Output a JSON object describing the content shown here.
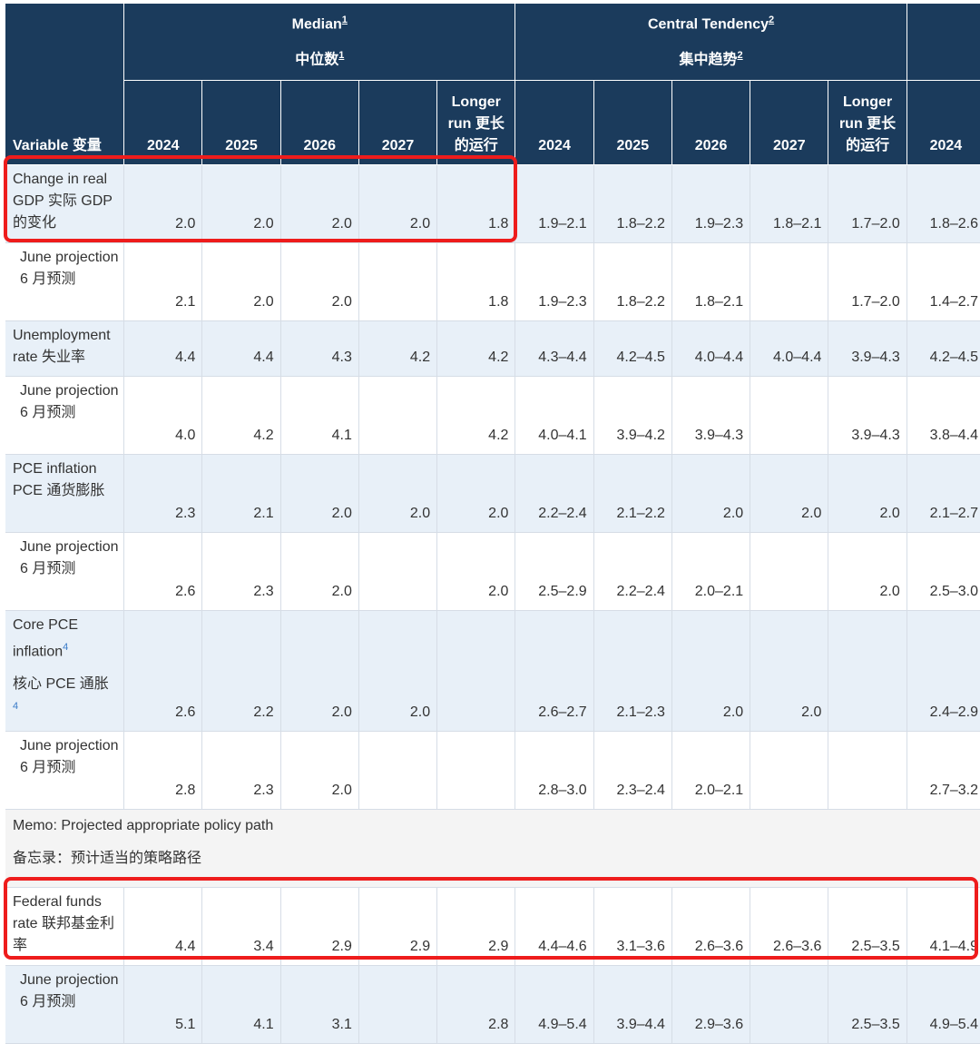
{
  "header": {
    "variable": "Variable 变量",
    "median": {
      "en": "Median",
      "zh": "中位数",
      "fn": "1"
    },
    "central": {
      "en": "Central Tendency",
      "zh": "集中趋势",
      "fn": "2"
    },
    "years": [
      "2024",
      "2025",
      "2026",
      "2027"
    ],
    "longer_run": "Longer run 更长的运行",
    "extra_year": "2024"
  },
  "rows": [
    {
      "label": "Change in real GDP 实际 GDP 的变化",
      "median": [
        "2.0",
        "2.0",
        "2.0",
        "2.0",
        "1.8"
      ],
      "central": [
        "1.9–2.1",
        "1.8–2.2",
        "1.9–2.3",
        "1.8–2.1",
        "1.7–2.0"
      ],
      "extra": "1.8–2.6"
    },
    {
      "label": "June projection 6 月预测",
      "median": [
        "2.1",
        "2.0",
        "2.0",
        "",
        "1.8"
      ],
      "central": [
        "1.9–2.3",
        "1.8–2.2",
        "1.8–2.1",
        "",
        "1.7–2.0"
      ],
      "extra": "1.4–2.7"
    },
    {
      "label": "Unemployment rate 失业率",
      "median": [
        "4.4",
        "4.4",
        "4.3",
        "4.2",
        "4.2"
      ],
      "central": [
        "4.3–4.4",
        "4.2–4.5",
        "4.0–4.4",
        "4.0–4.4",
        "3.9–4.3"
      ],
      "extra": "4.2–4.5"
    },
    {
      "label": "June projection 6 月预测",
      "median": [
        "4.0",
        "4.2",
        "4.1",
        "",
        "4.2"
      ],
      "central": [
        "4.0–4.1",
        "3.9–4.2",
        "3.9–4.3",
        "",
        "3.9–4.3"
      ],
      "extra": "3.8–4.4"
    },
    {
      "label": "PCE inflation PCE 通货膨胀",
      "median": [
        "2.3",
        "2.1",
        "2.0",
        "2.0",
        "2.0"
      ],
      "central": [
        "2.2–2.4",
        "2.1–2.2",
        "2.0",
        "2.0",
        "2.0"
      ],
      "extra": "2.1–2.7"
    },
    {
      "label": "June projection 6 月预测",
      "median": [
        "2.6",
        "2.3",
        "2.0",
        "",
        "2.0"
      ],
      "central": [
        "2.5–2.9",
        "2.2–2.4",
        "2.0–2.1",
        "",
        "2.0"
      ],
      "extra": "2.5–3.0"
    },
    {
      "label_en": "Core PCE inflation",
      "label_zh": "核心 PCE 通胀",
      "fn": "4",
      "median": [
        "2.6",
        "2.2",
        "2.0",
        "2.0",
        ""
      ],
      "central": [
        "2.6–2.7",
        "2.1–2.3",
        "2.0",
        "2.0",
        ""
      ],
      "extra": "2.4–2.9"
    },
    {
      "label": "June projection 6 月预测",
      "median": [
        "2.8",
        "2.3",
        "2.0",
        "",
        ""
      ],
      "central": [
        "2.8–3.0",
        "2.3–2.4",
        "2.0–2.1",
        "",
        ""
      ],
      "extra": "2.7–3.2"
    },
    {
      "memo_en": "Memo: Projected appropriate policy path",
      "memo_zh": "备忘录：预计适当的策略路径"
    },
    {
      "label": "Federal funds rate 联邦基金利率",
      "median": [
        "4.4",
        "3.4",
        "2.9",
        "2.9",
        "2.9"
      ],
      "central": [
        "4.4–4.6",
        "3.1–3.6",
        "2.6–3.6",
        "2.6–3.6",
        "2.5–3.5"
      ],
      "extra": "4.1–4.9"
    },
    {
      "label": "June projection 6 月预测",
      "median": [
        "5.1",
        "4.1",
        "3.1",
        "",
        "2.8"
      ],
      "central": [
        "4.9–5.4",
        "3.9–4.4",
        "2.9–3.6",
        "",
        "2.5–3.5"
      ],
      "extra": "4.9–5.4"
    }
  ],
  "highlight_color": "#ee1c1c"
}
